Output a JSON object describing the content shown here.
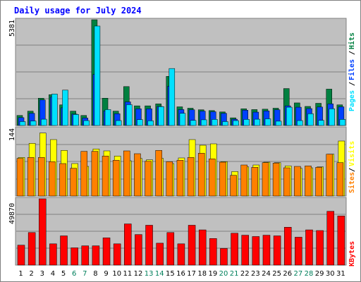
{
  "title": "Daily usage for July 2024",
  "colors": {
    "background": "#c0c0c0",
    "pages": "#00e0ff",
    "files": "#0040ff",
    "hits": "#008040",
    "visits": "#ffff00",
    "sites": "#ff8000",
    "kbytes": "#ff0000",
    "weekend_label": "#00805c",
    "weekday_label": "#000000",
    "title": "#0000ff"
  },
  "legend": {
    "pages": "Pages",
    "files": "Files",
    "hits": "Hits",
    "sites": "Sites",
    "visits": "Visits",
    "kbytes": "KBytes",
    "separator": "/"
  },
  "chart_data": [
    {
      "type": "bar",
      "name": "hits-files-pages",
      "ymax_label": "5381",
      "ylim": [
        0,
        5381
      ],
      "grid": true,
      "categories": [
        "1",
        "2",
        "3",
        "4",
        "5",
        "6",
        "7",
        "8",
        "9",
        "10",
        "11",
        "12",
        "13",
        "14",
        "15",
        "16",
        "17",
        "18",
        "19",
        "20",
        "21",
        "22",
        "23",
        "24",
        "25",
        "26",
        "27",
        "28",
        "29",
        "30",
        "31"
      ],
      "weekend_days": [
        "6",
        "7",
        "13",
        "14",
        "20",
        "21",
        "27",
        "28"
      ],
      "series": [
        {
          "name": "Hits",
          "values": [
            510,
            730,
            1390,
            1570,
            1050,
            730,
            510,
            5381,
            1390,
            730,
            1980,
            1000,
            1000,
            1100,
            2500,
            950,
            880,
            800,
            760,
            690,
            390,
            850,
            810,
            830,
            880,
            1880,
            1150,
            970,
            1130,
            1850,
            1050
          ]
        },
        {
          "name": "Files",
          "values": [
            400,
            620,
            1300,
            1450,
            900,
            580,
            380,
            2600,
            740,
            600,
            1200,
            850,
            850,
            970,
            2000,
            810,
            800,
            730,
            700,
            620,
            320,
            780,
            680,
            740,
            800,
            1000,
            930,
            860,
            940,
            1100,
            950
          ]
        },
        {
          "name": "Pages",
          "values": [
            200,
            230,
            320,
            1600,
            1800,
            560,
            250,
            5060,
            810,
            250,
            1060,
            300,
            240,
            960,
            2900,
            620,
            260,
            290,
            310,
            200,
            250,
            310,
            320,
            340,
            220,
            930,
            250,
            600,
            260,
            850,
            310
          ]
        }
      ]
    },
    {
      "type": "bar",
      "name": "visits-sites",
      "ymax_label": "144",
      "ylim": [
        0,
        144
      ],
      "grid": true,
      "categories": [
        "1",
        "2",
        "3",
        "4",
        "5",
        "6",
        "7",
        "8",
        "9",
        "10",
        "11",
        "12",
        "13",
        "14",
        "15",
        "16",
        "17",
        "18",
        "19",
        "20",
        "21",
        "22",
        "23",
        "24",
        "25",
        "26",
        "27",
        "28",
        "29",
        "30",
        "31"
      ],
      "series": [
        {
          "name": "Visits",
          "values": [
            82,
            112,
            134,
            120,
            97,
            69,
            63,
            100,
            96,
            85,
            75,
            80,
            77,
            80,
            69,
            81,
            120,
            108,
            111,
            73,
            52,
            62,
            66,
            72,
            71,
            64,
            59,
            60,
            62,
            89,
            117
          ]
        },
        {
          "name": "Sites",
          "values": [
            80,
            82,
            82,
            73,
            69,
            59,
            95,
            95,
            85,
            76,
            96,
            90,
            74,
            97,
            73,
            76,
            82,
            91,
            79,
            72,
            44,
            66,
            61,
            71,
            70,
            60,
            63,
            64,
            61,
            89,
            71
          ]
        }
      ]
    },
    {
      "type": "bar",
      "name": "kbytes",
      "ymax_label": "49870",
      "ylim": [
        0,
        49870
      ],
      "grid": true,
      "categories": [
        "1",
        "2",
        "3",
        "4",
        "5",
        "6",
        "7",
        "8",
        "9",
        "10",
        "11",
        "12",
        "13",
        "14",
        "15",
        "16",
        "17",
        "18",
        "19",
        "20",
        "21",
        "22",
        "23",
        "24",
        "25",
        "26",
        "27",
        "28",
        "29",
        "30",
        "31"
      ],
      "series": [
        {
          "name": "KBytes",
          "values": [
            15000,
            24500,
            49870,
            16000,
            22000,
            13000,
            14500,
            14500,
            20500,
            16000,
            31000,
            23000,
            30000,
            16500,
            24500,
            16000,
            30000,
            26500,
            20000,
            12500,
            24000,
            22500,
            21500,
            22500,
            22000,
            28500,
            21000,
            26500,
            26000,
            40500,
            37000
          ]
        }
      ]
    }
  ]
}
